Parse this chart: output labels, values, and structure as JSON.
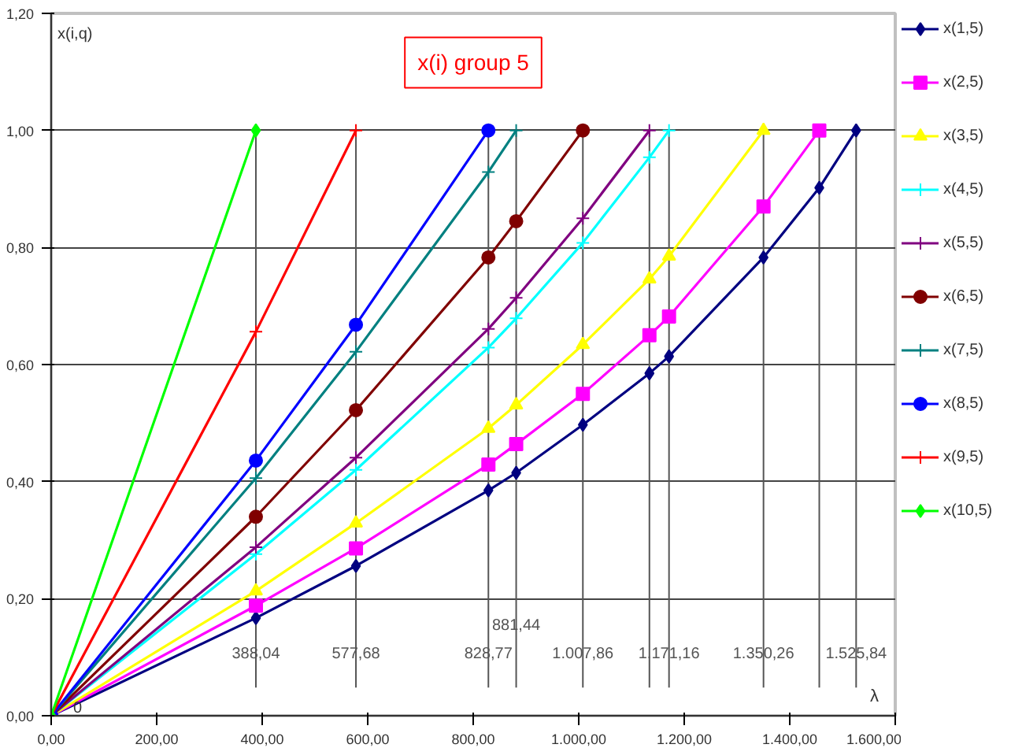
{
  "chart_data": {
    "type": "line",
    "title": "x(i) group 5",
    "xlabel": "λ",
    "ylabel": "x(i,q)",
    "xlim": [
      0,
      1600
    ],
    "ylim": [
      0,
      1.2
    ],
    "xticks": [
      {
        "value": 0,
        "label": "0,00"
      },
      {
        "value": 200,
        "label": "200,00"
      },
      {
        "value": 400,
        "label": "400,00"
      },
      {
        "value": 600,
        "label": "600,00"
      },
      {
        "value": 800,
        "label": "800,00"
      },
      {
        "value": 1000,
        "label": "1.000,00"
      },
      {
        "value": 1200,
        "label": "1.200,00"
      },
      {
        "value": 1400,
        "label": "1.400,00"
      },
      {
        "value": 1600,
        "label": "1.600,00"
      }
    ],
    "yticks": [
      {
        "value": 0,
        "label": "0,00"
      },
      {
        "value": 0.2,
        "label": "0,20"
      },
      {
        "value": 0.4,
        "label": "0,40"
      },
      {
        "value": 0.6,
        "label": "0,60"
      },
      {
        "value": 0.8,
        "label": "0,80"
      },
      {
        "value": 1.0,
        "label": "1,00"
      },
      {
        "value": 1.2,
        "label": "1,20"
      }
    ],
    "grid": "y",
    "legend": "right",
    "annotations": [
      {
        "text": "0",
        "x": 0,
        "y": 0
      }
    ],
    "ref_lines": [
      {
        "axis": "x",
        "value": 388.04,
        "label": "388,04"
      },
      {
        "axis": "x",
        "value": 577.68,
        "label": "577,68"
      },
      {
        "axis": "x",
        "value": 828.77,
        "label": "828,77"
      },
      {
        "axis": "x",
        "value": 881.44,
        "label": "881,44"
      },
      {
        "axis": "x",
        "value": 1007.86,
        "label": "1.007,86"
      },
      {
        "axis": "x",
        "value": 1134,
        "label": null
      },
      {
        "axis": "x",
        "value": 1171.16,
        "label": "1.171,16"
      },
      {
        "axis": "x",
        "value": 1350.26,
        "label": "1.350,26"
      },
      {
        "axis": "x",
        "value": 1456,
        "label": null
      },
      {
        "axis": "x",
        "value": 1525.84,
        "label": "1.525,84"
      }
    ],
    "series": [
      {
        "name": "x(1,5)",
        "color": "#000080",
        "marker": "diamond",
        "x": [
          0,
          388.04,
          577.68,
          828.77,
          881.44,
          1007.86,
          1134,
          1171.16,
          1350.26,
          1456,
          1525.84
        ],
        "values": [
          0,
          0.167,
          0.256,
          0.385,
          0.415,
          0.497,
          0.585,
          0.614,
          0.783,
          0.902,
          1.0
        ]
      },
      {
        "name": "x(2,5)",
        "color": "#ff00ff",
        "marker": "square",
        "x": [
          0,
          388.04,
          577.68,
          828.77,
          881.44,
          1007.86,
          1134,
          1171.16,
          1350.26,
          1456
        ],
        "values": [
          0,
          0.188,
          0.286,
          0.429,
          0.464,
          0.55,
          0.65,
          0.682,
          0.87,
          1.0
        ]
      },
      {
        "name": "x(3,5)",
        "color": "#ffff00",
        "marker": "triangle",
        "x": [
          0,
          388.04,
          577.68,
          828.77,
          881.44,
          1007.86,
          1134,
          1171.16,
          1350.26
        ],
        "values": [
          0,
          0.213,
          0.329,
          0.491,
          0.531,
          0.634,
          0.746,
          0.785,
          1.0
        ]
      },
      {
        "name": "x(4,5)",
        "color": "#00ffff",
        "marker": "cross",
        "x": [
          0,
          388.04,
          577.68,
          828.77,
          881.44,
          1007.86,
          1134,
          1171.16
        ],
        "values": [
          0,
          0.276,
          0.42,
          0.629,
          0.679,
          0.808,
          0.954,
          1.0
        ]
      },
      {
        "name": "x(5,5)",
        "color": "#800080",
        "marker": "cross",
        "x": [
          0,
          388.04,
          577.68,
          828.77,
          881.44,
          1007.86,
          1134
        ],
        "values": [
          0,
          0.288,
          0.441,
          0.661,
          0.714,
          0.85,
          1.0
        ]
      },
      {
        "name": "x(6,5)",
        "color": "#800000",
        "marker": "circle",
        "x": [
          0,
          388.04,
          577.68,
          828.77,
          881.44,
          1007.86
        ],
        "values": [
          0,
          0.34,
          0.522,
          0.783,
          0.845,
          1.0
        ]
      },
      {
        "name": "x(7,5)",
        "color": "#008080",
        "marker": "cross",
        "x": [
          0,
          388.04,
          577.68,
          828.77,
          881.44
        ],
        "values": [
          0,
          0.406,
          0.622,
          0.929,
          1.0
        ]
      },
      {
        "name": "x(8,5)",
        "color": "#0000ff",
        "marker": "circle",
        "x": [
          0,
          388.04,
          577.68,
          828.77
        ],
        "values": [
          0,
          0.436,
          0.668,
          1.0
        ]
      },
      {
        "name": "x(9,5)",
        "color": "#ff0000",
        "marker": "cross",
        "x": [
          0,
          388.04,
          577.68
        ],
        "values": [
          0,
          0.656,
          1.0
        ]
      },
      {
        "name": "x(10,5)",
        "color": "#00ff00",
        "marker": "diamond",
        "x": [
          0,
          388.04
        ],
        "values": [
          0,
          1.0
        ]
      }
    ]
  }
}
